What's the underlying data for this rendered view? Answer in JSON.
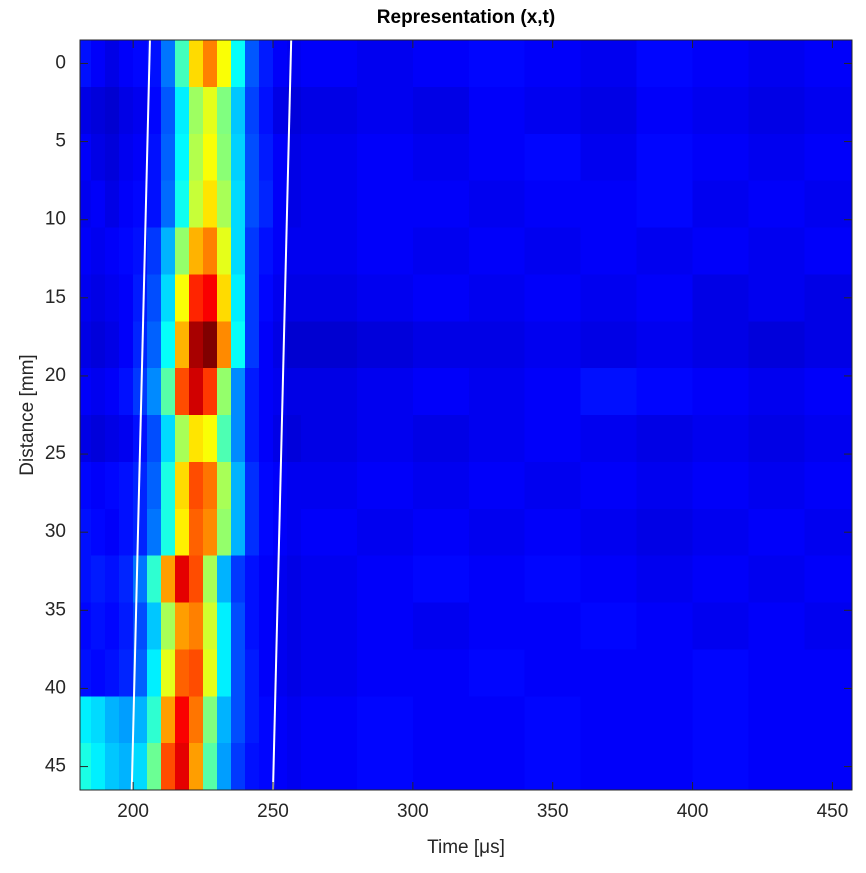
{
  "chart_data": {
    "type": "heatmap",
    "title": "Representation (x,t)",
    "xlabel": "Time [μs]",
    "ylabel": "Distance [mm]",
    "colormap": "jet",
    "clim": [
      0,
      1
    ],
    "xbins": [
      180,
      185,
      190,
      195,
      200,
      205,
      210,
      215,
      220,
      225,
      230,
      235,
      240,
      245,
      250,
      255,
      260,
      280,
      300,
      320,
      340,
      360,
      380,
      400,
      420,
      440,
      460
    ],
    "ybins": [
      -1.5,
      1.5,
      4.5,
      7.5,
      10.5,
      13.5,
      16.5,
      19.5,
      22.5,
      25.5,
      28.5,
      31.5,
      34.5,
      37.5,
      40.5,
      43.5,
      46.5
    ],
    "z": [
      [
        0.14,
        0.12,
        0.1,
        0.12,
        0.13,
        0.14,
        0.24,
        0.44,
        0.66,
        0.75,
        0.62,
        0.38,
        0.21,
        0.15,
        0.12,
        0.11,
        0.12,
        0.11,
        0.12,
        0.13,
        0.12,
        0.11,
        0.13,
        0.12,
        0.11,
        0.12
      ],
      [
        0.1,
        0.09,
        0.08,
        0.1,
        0.11,
        0.13,
        0.21,
        0.36,
        0.53,
        0.6,
        0.5,
        0.32,
        0.19,
        0.14,
        0.1,
        0.09,
        0.1,
        0.11,
        0.1,
        0.12,
        0.11,
        0.1,
        0.12,
        0.11,
        0.1,
        0.11
      ],
      [
        0.12,
        0.1,
        0.09,
        0.11,
        0.12,
        0.14,
        0.22,
        0.37,
        0.55,
        0.62,
        0.51,
        0.33,
        0.2,
        0.15,
        0.12,
        0.1,
        0.11,
        0.12,
        0.11,
        0.12,
        0.13,
        0.11,
        0.13,
        0.12,
        0.11,
        0.12
      ],
      [
        0.11,
        0.12,
        0.1,
        0.12,
        0.13,
        0.14,
        0.23,
        0.39,
        0.57,
        0.65,
        0.54,
        0.34,
        0.2,
        0.16,
        0.12,
        0.1,
        0.11,
        0.12,
        0.12,
        0.11,
        0.12,
        0.12,
        0.13,
        0.11,
        0.12,
        0.11
      ],
      [
        0.12,
        0.11,
        0.12,
        0.13,
        0.14,
        0.18,
        0.3,
        0.52,
        0.7,
        0.75,
        0.6,
        0.34,
        0.18,
        0.14,
        0.12,
        0.11,
        0.11,
        0.12,
        0.11,
        0.12,
        0.11,
        0.12,
        0.11,
        0.12,
        0.11,
        0.12
      ],
      [
        0.11,
        0.1,
        0.11,
        0.12,
        0.15,
        0.2,
        0.34,
        0.62,
        0.84,
        0.88,
        0.66,
        0.36,
        0.18,
        0.13,
        0.11,
        0.1,
        0.1,
        0.11,
        0.12,
        0.11,
        0.12,
        0.11,
        0.12,
        0.1,
        0.11,
        0.1
      ],
      [
        0.1,
        0.09,
        0.1,
        0.12,
        0.16,
        0.22,
        0.38,
        0.7,
        0.96,
        1.0,
        0.74,
        0.38,
        0.18,
        0.12,
        0.1,
        0.08,
        0.08,
        0.09,
        0.1,
        0.1,
        0.11,
        0.1,
        0.11,
        0.1,
        0.09,
        0.1
      ],
      [
        0.12,
        0.11,
        0.12,
        0.14,
        0.18,
        0.26,
        0.46,
        0.8,
        0.92,
        0.82,
        0.52,
        0.26,
        0.15,
        0.12,
        0.11,
        0.1,
        0.1,
        0.11,
        0.12,
        0.11,
        0.12,
        0.14,
        0.13,
        0.12,
        0.11,
        0.12
      ],
      [
        0.1,
        0.09,
        0.1,
        0.11,
        0.14,
        0.2,
        0.34,
        0.54,
        0.65,
        0.62,
        0.45,
        0.26,
        0.15,
        0.12,
        0.1,
        0.09,
        0.1,
        0.11,
        0.1,
        0.11,
        0.12,
        0.11,
        0.1,
        0.11,
        0.1,
        0.11
      ],
      [
        0.13,
        0.12,
        0.13,
        0.14,
        0.16,
        0.22,
        0.4,
        0.66,
        0.8,
        0.76,
        0.54,
        0.3,
        0.17,
        0.13,
        0.12,
        0.11,
        0.11,
        0.12,
        0.11,
        0.12,
        0.11,
        0.12,
        0.11,
        0.12,
        0.11,
        0.12
      ],
      [
        0.14,
        0.13,
        0.12,
        0.14,
        0.16,
        0.24,
        0.4,
        0.64,
        0.78,
        0.74,
        0.52,
        0.3,
        0.17,
        0.13,
        0.12,
        0.11,
        0.12,
        0.11,
        0.12,
        0.11,
        0.12,
        0.11,
        0.1,
        0.11,
        0.12,
        0.11
      ],
      [
        0.14,
        0.15,
        0.14,
        0.16,
        0.24,
        0.42,
        0.72,
        0.9,
        0.8,
        0.54,
        0.3,
        0.18,
        0.14,
        0.12,
        0.11,
        0.1,
        0.11,
        0.12,
        0.13,
        0.12,
        0.13,
        0.12,
        0.11,
        0.12,
        0.11,
        0.12
      ],
      [
        0.13,
        0.14,
        0.13,
        0.15,
        0.2,
        0.32,
        0.54,
        0.72,
        0.75,
        0.58,
        0.36,
        0.2,
        0.14,
        0.12,
        0.11,
        0.1,
        0.11,
        0.12,
        0.11,
        0.12,
        0.12,
        0.13,
        0.12,
        0.11,
        0.12,
        0.11
      ],
      [
        0.14,
        0.13,
        0.14,
        0.16,
        0.22,
        0.36,
        0.6,
        0.78,
        0.8,
        0.6,
        0.36,
        0.2,
        0.15,
        0.12,
        0.11,
        0.1,
        0.11,
        0.12,
        0.12,
        0.13,
        0.12,
        0.12,
        0.12,
        0.13,
        0.12,
        0.12
      ],
      [
        0.36,
        0.34,
        0.3,
        0.28,
        0.3,
        0.42,
        0.72,
        0.88,
        0.76,
        0.5,
        0.3,
        0.2,
        0.15,
        0.13,
        0.12,
        0.11,
        0.12,
        0.13,
        0.12,
        0.12,
        0.13,
        0.12,
        0.12,
        0.13,
        0.12,
        0.12
      ],
      [
        0.4,
        0.36,
        0.32,
        0.3,
        0.34,
        0.48,
        0.8,
        0.9,
        0.72,
        0.46,
        0.28,
        0.18,
        0.14,
        0.13,
        0.12,
        0.11,
        0.12,
        0.13,
        0.12,
        0.12,
        0.13,
        0.12,
        0.12,
        0.13,
        0.12,
        0.12
      ]
    ],
    "lines": [
      {
        "color": "#ffffff",
        "x": [
          206,
          199.5
        ],
        "y": [
          -1.5,
          46.5
        ]
      },
      {
        "color": "#ffffff",
        "x": [
          256.5,
          250
        ],
        "y": [
          -1.5,
          46.5
        ]
      }
    ],
    "xlim": [
      181,
      457
    ],
    "ylim": [
      -1.5,
      46.5
    ],
    "y_reversed": true,
    "xticks": [
      200,
      250,
      300,
      350,
      400,
      450
    ],
    "yticks": [
      0,
      5,
      10,
      15,
      20,
      25,
      30,
      35,
      40,
      45
    ]
  }
}
